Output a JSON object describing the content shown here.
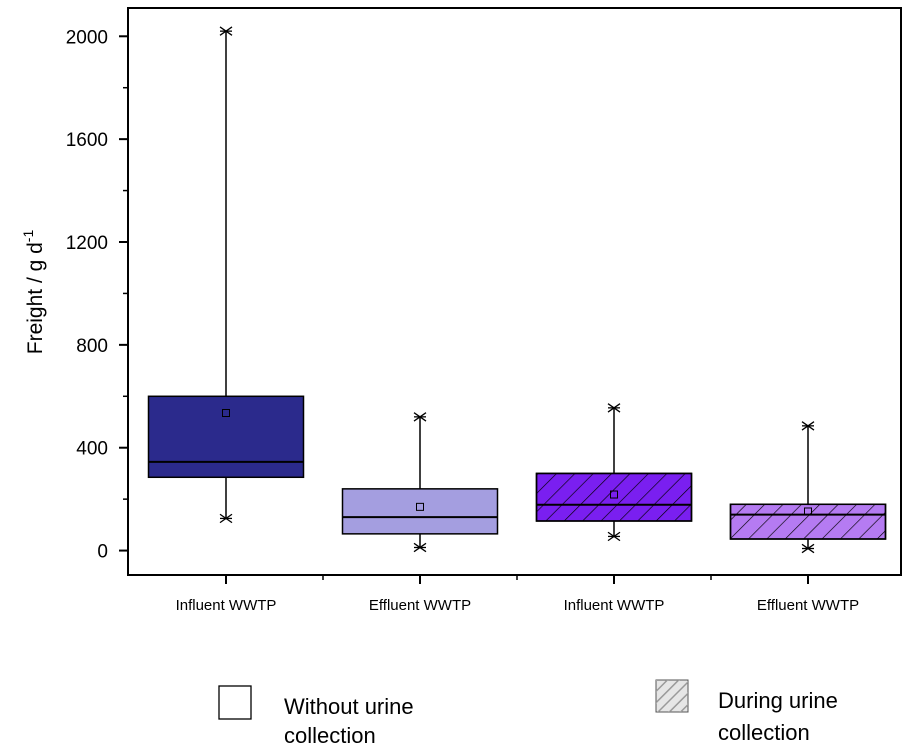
{
  "chart_data": {
    "type": "box",
    "ylabel": "Freight / g d",
    "ylabel_superscript": "-1",
    "ylim": [
      -95,
      2110
    ],
    "yticks": [
      0,
      400,
      800,
      1200,
      1600,
      2000
    ],
    "ytick_labels": [
      "0",
      "400",
      "800",
      "1200",
      "1600",
      "2000"
    ],
    "categories": [
      "Influent WWTP",
      "Effluent WWTP",
      "Influent WWTP",
      "Effluent WWTP"
    ],
    "boxes": [
      {
        "category": "Influent WWTP",
        "group": "Without urine collection",
        "min": 125,
        "q1": 285,
        "median": 345,
        "q3": 600,
        "max": 2020,
        "mean": 535,
        "color": "#2b2a8c",
        "hatched": false
      },
      {
        "category": "Effluent WWTP",
        "group": "Without urine collection",
        "min": 12,
        "q1": 65,
        "median": 130,
        "q3": 240,
        "max": 520,
        "mean": 170,
        "color": "#a49ee0",
        "hatched": false
      },
      {
        "category": "Influent WWTP",
        "group": "During urine collection",
        "min": 55,
        "q1": 115,
        "median": 178,
        "q3": 300,
        "max": 555,
        "mean": 218,
        "color": "#7a1ff0",
        "hatched": true
      },
      {
        "category": "Effluent WWTP",
        "group": "During urine collection",
        "min": 8,
        "q1": 45,
        "median": 140,
        "q3": 180,
        "max": 485,
        "mean": 152,
        "color": "#b57bf2",
        "hatched": true
      }
    ],
    "legend": {
      "placement": "bottom",
      "items": [
        {
          "label_line1": "Without urine",
          "label_line2": "collection",
          "swatch": "plain"
        },
        {
          "label_line1": "During urine",
          "label_line2": "collection",
          "swatch": "hatched"
        }
      ]
    },
    "colors": {
      "axis": "#000000",
      "hatch": "#000000",
      "legend_hatch_bg": "#e6e6e6",
      "legend_hatch_line": "#9a9a9a"
    }
  }
}
